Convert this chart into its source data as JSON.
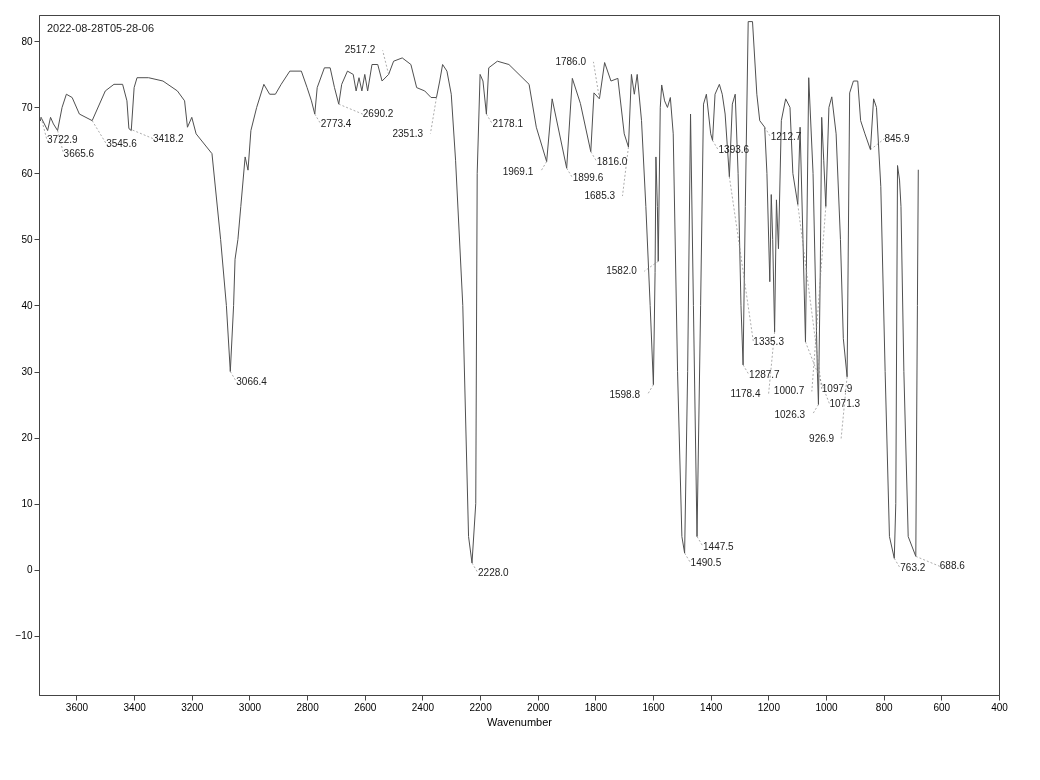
{
  "chart_data": {
    "type": "line",
    "xlabel": "Wavenumber",
    "color": "#505050",
    "xlim": [
      3730,
      400
    ],
    "ylim": [
      -19,
      84
    ],
    "xticks": [
      3600,
      3400,
      3200,
      3000,
      2800,
      2600,
      2400,
      2200,
      2000,
      1800,
      1600,
      1400,
      1200,
      1000,
      800,
      600,
      400
    ],
    "yticks": [
      -10,
      0,
      10,
      20,
      30,
      40,
      50,
      60,
      70,
      80
    ],
    "x": [
      3725,
      3722.9,
      3700,
      3690,
      3680,
      3665.6,
      3650,
      3635,
      3615,
      3590,
      3545.6,
      3500,
      3470,
      3440,
      3425,
      3418.2,
      3410,
      3400,
      3390,
      3350,
      3300,
      3250,
      3225,
      3215,
      3200,
      3185,
      3130,
      3100,
      3080,
      3066.4,
      3055,
      3050,
      3040,
      3030,
      3015,
      3005,
      2995,
      2975,
      2950,
      2930,
      2910,
      2890,
      2860,
      2820,
      2800,
      2785,
      2773.4,
      2765,
      2740,
      2720,
      2705,
      2690.2,
      2680,
      2660,
      2640,
      2630,
      2620,
      2610,
      2600,
      2590,
      2575,
      2555,
      2540,
      2517.2,
      2500,
      2470,
      2440,
      2420,
      2392,
      2370,
      2351.3,
      2340,
      2330,
      2315,
      2300,
      2285,
      2260,
      2240,
      2228.0,
      2215,
      2210,
      2200,
      2190,
      2178.1,
      2170,
      2140,
      2100,
      2030,
      2005,
      1969.1,
      1950,
      1899.6,
      1880,
      1852,
      1816.0,
      1805,
      1786.0,
      1768,
      1746,
      1722,
      1700,
      1685.3,
      1675,
      1665,
      1655,
      1640,
      1625,
      1610,
      1598.8,
      1593,
      1590,
      1585,
      1582.0,
      1575,
      1570,
      1560,
      1550,
      1540,
      1530,
      1515,
      1500,
      1490.5,
      1480,
      1470,
      1460,
      1447.5,
      1435,
      1425,
      1415,
      1400,
      1393.6,
      1385,
      1370,
      1360,
      1350,
      1335.3,
      1325,
      1315,
      1305,
      1295,
      1287.7,
      1280,
      1270,
      1255,
      1240,
      1230,
      1212.7,
      1205,
      1195,
      1190,
      1185,
      1178.4,
      1172,
      1165,
      1155,
      1140,
      1125,
      1115,
      1097.9,
      1090,
      1080,
      1071.3,
      1060,
      1045,
      1030,
      1026.3,
      1020,
      1015,
      1008,
      1000.7,
      990,
      980,
      965,
      950,
      940,
      926.9,
      918,
      905,
      890,
      880,
      865,
      845.9,
      835,
      825,
      810,
      795,
      780,
      763.2,
      758,
      752,
      745,
      740,
      730,
      715,
      688.6,
      683,
      680
    ],
    "values": [
      68,
      68.5,
      66.5,
      68.5,
      67.5,
      66.5,
      70,
      72,
      71.5,
      69,
      68,
      72.5,
      73.5,
      73.5,
      71,
      66.8,
      66.5,
      73,
      74.5,
      74.5,
      74,
      72.5,
      71,
      67,
      68.5,
      66,
      63,
      50,
      40,
      30,
      40,
      47,
      50,
      55,
      62.5,
      60.5,
      66.5,
      70,
      73.5,
      72,
      72,
      73.5,
      75.5,
      75.5,
      73,
      71,
      69,
      73,
      76,
      76,
      73,
      70.5,
      73.5,
      75.5,
      75,
      72.5,
      74.5,
      72.5,
      75,
      72.5,
      76.5,
      76.5,
      74,
      75,
      77,
      77.5,
      76.5,
      73,
      72.5,
      71.5,
      71.5,
      74,
      76.5,
      75.5,
      72,
      62,
      40,
      5,
      1,
      10,
      60,
      75,
      74,
      69,
      76,
      77,
      76.5,
      73.5,
      67,
      61.8,
      71.3,
      60.8,
      74.4,
      70.6,
      63.3,
      72.2,
      71.3,
      76.8,
      74,
      74.4,
      66,
      64,
      75,
      72,
      75,
      68,
      55,
      40,
      28,
      45,
      62.5,
      55,
      46.7,
      70,
      73.4,
      71,
      70,
      71.5,
      66,
      30,
      5,
      2.5,
      30,
      69,
      40,
      5,
      40,
      70.5,
      72,
      66,
      65,
      72,
      73.5,
      72,
      69,
      59.5,
      70.5,
      72,
      60,
      40,
      31,
      55,
      83,
      83,
      72,
      68,
      67,
      60,
      43.6,
      56.8,
      50,
      36,
      56,
      48.6,
      68,
      71.3,
      70,
      60,
      55.3,
      67,
      50,
      34.5,
      74.5,
      60,
      30,
      25,
      45,
      68.5,
      62,
      55,
      70,
      71.6,
      66,
      50,
      35,
      29.2,
      72.2,
      74,
      74,
      68,
      66,
      63.6,
      71.3,
      70,
      58,
      30,
      5,
      1.7,
      10,
      61.2,
      59,
      55,
      30,
      5,
      2,
      40,
      60.5
    ],
    "annotations": [
      "2022-08-28T05-28-06",
      {
        "text": "3722.9",
        "x": 3722.9,
        "y": 68.5
      },
      {
        "text": "3665.6",
        "x": 3665.6,
        "y": 66.5
      },
      {
        "text": "3545.6",
        "x": 3545.6,
        "y": 68
      },
      {
        "text": "3418.2",
        "x": 3418.2,
        "y": 66.8
      },
      {
        "text": "3066.4",
        "x": 3066.4,
        "y": 30
      },
      {
        "text": "2773.4",
        "x": 2773.4,
        "y": 69
      },
      {
        "text": "2690.2",
        "x": 2690.2,
        "y": 70.5
      },
      {
        "text": "2517.2",
        "x": 2517.2,
        "y": 75
      },
      {
        "text": "2351.3",
        "x": 2351.3,
        "y": 71.5
      },
      {
        "text": "2228.0",
        "x": 2228.0,
        "y": 1
      },
      {
        "text": "2178.1",
        "x": 2178.1,
        "y": 69
      },
      {
        "text": "1969.1",
        "x": 1969.1,
        "y": 61.8
      },
      {
        "text": "1899.6",
        "x": 1899.6,
        "y": 60.8
      },
      {
        "text": "1816.0",
        "x": 1816.0,
        "y": 63.3
      },
      {
        "text": "1786.0",
        "x": 1786.0,
        "y": 71.3
      },
      {
        "text": "1685.3",
        "x": 1685.3,
        "y": 64
      },
      {
        "text": "1598.8",
        "x": 1598.8,
        "y": 28
      },
      {
        "text": "1582.0",
        "x": 1582.0,
        "y": 46.7
      },
      {
        "text": "1490.5",
        "x": 1490.5,
        "y": 2.5
      },
      {
        "text": "1447.5",
        "x": 1447.5,
        "y": 5
      },
      {
        "text": "1393.6",
        "x": 1393.6,
        "y": 65
      },
      {
        "text": "1335.3",
        "x": 1335.3,
        "y": 59.5
      },
      {
        "text": "1287.7",
        "x": 1287.7,
        "y": 31
      },
      {
        "text": "1212.7",
        "x": 1212.7,
        "y": 67
      },
      {
        "text": "1178.4",
        "x": 1178.4,
        "y": 36
      },
      {
        "text": "1097.9",
        "x": 1097.9,
        "y": 55.3
      },
      {
        "text": "1071.3",
        "x": 1071.3,
        "y": 34.5
      },
      {
        "text": "1026.3",
        "x": 1026.3,
        "y": 25
      },
      {
        "text": "1000.7",
        "x": 1000.7,
        "y": 55
      },
      {
        "text": "926.9",
        "x": 926.9,
        "y": 29.2
      },
      {
        "text": "845.9",
        "x": 845.9,
        "y": 63.6
      },
      {
        "text": "763.2",
        "x": 763.2,
        "y": 1.7
      },
      {
        "text": "688.6",
        "x": 688.6,
        "y": 2
      }
    ]
  }
}
